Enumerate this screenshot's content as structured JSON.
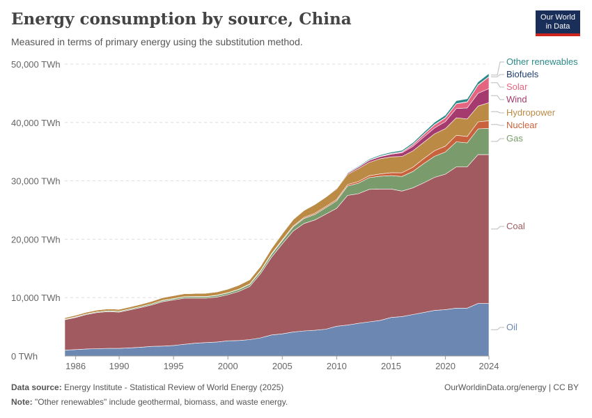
{
  "header": {
    "title": "Energy consumption by source, China",
    "subtitle": "Measured in terms of primary energy using the substitution method.",
    "logo_line1": "Our World",
    "logo_line2": "in Data"
  },
  "footer": {
    "source_label": "Data source:",
    "source_text": "Energy Institute - Statistical Review of World Energy (2025)",
    "note_label": "Note:",
    "note_text": "\"Other renewables\" include geothermal, biomass, and waste energy.",
    "attribution": "OurWorldinData.org/energy | CC BY"
  },
  "chart_data": {
    "type": "area",
    "stacked": true,
    "ylim": [
      0,
      50000
    ],
    "xlim": [
      1985,
      2024
    ],
    "y_ticks": [
      0,
      10000,
      20000,
      30000,
      40000,
      50000
    ],
    "y_tick_labels": [
      "0 TWh",
      "10,000 TWh",
      "20,000 TWh",
      "30,000 TWh",
      "40,000 TWh",
      "50,000 TWh"
    ],
    "x_ticks": [
      1986,
      1990,
      1995,
      2000,
      2005,
      2010,
      2015,
      2020,
      2024
    ],
    "x_tick_labels": [
      "1986",
      "1990",
      "1995",
      "2000",
      "2005",
      "2010",
      "2015",
      "2020",
      "2024"
    ],
    "grid": "horizontal dashed",
    "years": [
      1985,
      1986,
      1987,
      1988,
      1989,
      1990,
      1991,
      1992,
      1993,
      1994,
      1995,
      1996,
      1997,
      1998,
      1999,
      2000,
      2001,
      2002,
      2003,
      2004,
      2005,
      2006,
      2007,
      2008,
      2009,
      2010,
      2011,
      2012,
      2013,
      2014,
      2015,
      2016,
      2017,
      2018,
      2019,
      2020,
      2021,
      2022,
      2023,
      2024
    ],
    "series": [
      {
        "name": "Oil",
        "color": "#6d87b3",
        "values": [
          1000,
          1100,
          1200,
          1250,
          1300,
          1300,
          1400,
          1500,
          1650,
          1700,
          1800,
          2000,
          2200,
          2300,
          2400,
          2600,
          2650,
          2800,
          3100,
          3600,
          3800,
          4100,
          4300,
          4400,
          4600,
          5100,
          5300,
          5600,
          5850,
          6100,
          6600,
          6750,
          7100,
          7450,
          7800,
          7950,
          8200,
          8200,
          9000,
          9000
        ]
      },
      {
        "name": "Coal",
        "color": "#a25a61",
        "values": [
          5200,
          5500,
          5900,
          6200,
          6300,
          6200,
          6500,
          6800,
          7100,
          7600,
          7800,
          7900,
          7700,
          7600,
          7700,
          7900,
          8400,
          9100,
          11000,
          13300,
          15400,
          17300,
          18400,
          18900,
          19700,
          20200,
          22200,
          22200,
          22700,
          22500,
          22000,
          21500,
          21700,
          22200,
          22800,
          23200,
          24200,
          24200,
          25500,
          25500
        ]
      },
      {
        "name": "Gas",
        "color": "#7a9c6c",
        "values": [
          100,
          110,
          120,
          130,
          150,
          160,
          170,
          180,
          190,
          200,
          210,
          230,
          260,
          260,
          270,
          300,
          340,
          370,
          420,
          490,
          560,
          700,
          850,
          960,
          1100,
          1300,
          1600,
          1800,
          2000,
          2200,
          2300,
          2500,
          2800,
          3300,
          3600,
          3800,
          4300,
          4100,
          4400,
          4500
        ]
      },
      {
        "name": "Nuclear",
        "color": "#c8623c",
        "values": [
          0,
          0,
          0,
          0,
          0,
          0,
          0,
          10,
          10,
          40,
          40,
          40,
          40,
          40,
          50,
          50,
          50,
          60,
          100,
          130,
          150,
          160,
          180,
          200,
          210,
          220,
          260,
          290,
          330,
          380,
          500,
          630,
          730,
          840,
          950,
          1000,
          1100,
          1100,
          1200,
          1300
        ]
      },
      {
        "name": "Hydropower",
        "color": "#bb8a45",
        "values": [
          250,
          270,
          290,
          310,
          330,
          350,
          360,
          380,
          420,
          460,
          500,
          500,
          520,
          560,
          560,
          600,
          700,
          740,
          740,
          860,
          1050,
          1100,
          1200,
          1500,
          1600,
          1800,
          1750,
          2200,
          2300,
          2600,
          2700,
          2800,
          2800,
          2800,
          2900,
          3000,
          3000,
          3000,
          2700,
          3100
        ]
      },
      {
        "name": "Wind",
        "color": "#a53a6e",
        "values": [
          0,
          0,
          0,
          0,
          0,
          0,
          0,
          0,
          0,
          0,
          0,
          0,
          0,
          0,
          0,
          0,
          0,
          0,
          0,
          0,
          0,
          10,
          30,
          50,
          80,
          120,
          190,
          250,
          330,
          370,
          450,
          600,
          760,
          900,
          1000,
          1200,
          1600,
          1900,
          2200,
          2400
        ]
      },
      {
        "name": "Solar",
        "color": "#e5647f",
        "values": [
          0,
          0,
          0,
          0,
          0,
          0,
          0,
          0,
          0,
          0,
          0,
          0,
          0,
          0,
          0,
          0,
          0,
          0,
          0,
          0,
          0,
          0,
          0,
          0,
          0,
          0,
          0,
          10,
          20,
          60,
          100,
          160,
          300,
          440,
          560,
          650,
          800,
          1000,
          1400,
          2000
        ]
      },
      {
        "name": "Biofuels",
        "color": "#1e3b6d",
        "values": [
          0,
          0,
          0,
          0,
          0,
          0,
          0,
          0,
          0,
          0,
          0,
          0,
          0,
          0,
          0,
          0,
          10,
          10,
          10,
          10,
          20,
          20,
          20,
          30,
          30,
          30,
          30,
          30,
          30,
          30,
          40,
          40,
          40,
          40,
          40,
          50,
          50,
          50,
          50,
          50
        ]
      },
      {
        "name": "Other renewables",
        "color": "#2b8a87",
        "values": [
          0,
          0,
          0,
          0,
          0,
          0,
          0,
          0,
          0,
          0,
          0,
          0,
          0,
          0,
          0,
          0,
          0,
          0,
          0,
          10,
          20,
          20,
          30,
          40,
          60,
          80,
          100,
          130,
          160,
          190,
          220,
          250,
          300,
          330,
          380,
          420,
          470,
          500,
          500,
          550
        ]
      }
    ]
  }
}
